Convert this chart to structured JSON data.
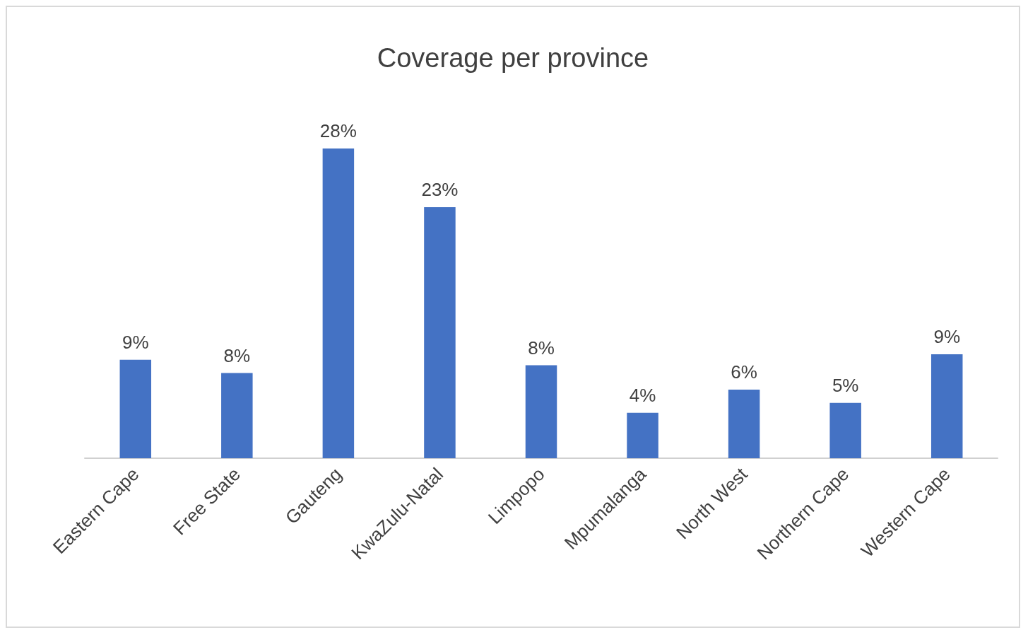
{
  "chart_data": {
    "type": "bar",
    "title": "Coverage per province",
    "categories": [
      "Eastern Cape",
      "Free State",
      "Gauteng",
      "KwaZulu-Natal",
      "Limpopo",
      "Mpumalanga",
      "North West",
      "Northern Cape",
      "Western Cape"
    ],
    "values": [
      8.9,
      7.7,
      28,
      22.7,
      8.4,
      4.1,
      6.2,
      5.0,
      9.4
    ],
    "value_labels": [
      "9%",
      "8%",
      "28%",
      "23%",
      "8%",
      "4%",
      "6%",
      "5%",
      "9%"
    ],
    "color": "#4472c4",
    "grid": false
  }
}
